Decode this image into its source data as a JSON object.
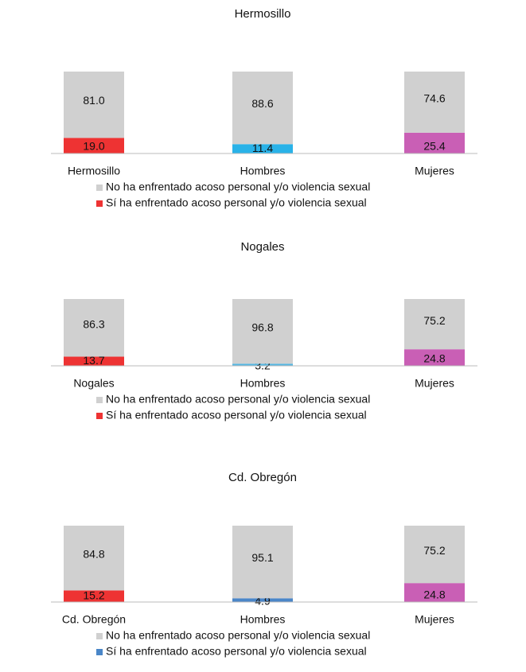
{
  "chart_data": [
    {
      "type": "bar",
      "stacked": true,
      "title": "Hermosillo",
      "categories": [
        "Hermosillo",
        "Hombres",
        "Mujeres"
      ],
      "ylim": [
        0,
        100
      ],
      "series": [
        {
          "name": "Sí ha enfrentado acoso personal y/o violencia sexual",
          "color": "#ee3333",
          "colors": [
            "#ee3333",
            "#29b2e8",
            "#c95fb5"
          ],
          "values": [
            19.0,
            11.4,
            25.4
          ],
          "value_labels": [
            "19.0",
            "11.4",
            "25.4"
          ]
        },
        {
          "name": "No ha enfrentado acoso personal y/o violencia sexual",
          "color": "#d0d0d0",
          "values": [
            81.0,
            88.6,
            74.6
          ],
          "value_labels": [
            "81.0",
            "88.6",
            "74.6"
          ]
        }
      ]
    },
    {
      "type": "bar",
      "stacked": true,
      "title": "Nogales",
      "categories": [
        "Nogales",
        "Hombres",
        "Mujeres"
      ],
      "ylim": [
        0,
        100
      ],
      "series": [
        {
          "name": "Sí ha enfrentado acoso personal y/o violencia sexual",
          "color": "#ee3333",
          "colors": [
            "#ee3333",
            "#56b6e0",
            "#c95fb5"
          ],
          "values": [
            13.7,
            3.2,
            24.8
          ],
          "value_labels": [
            "13.7",
            "3.2",
            "24.8"
          ]
        },
        {
          "name": "No ha enfrentado acoso personal y/o violencia sexual",
          "color": "#d0d0d0",
          "values": [
            86.3,
            96.8,
            75.2
          ],
          "value_labels": [
            "86.3",
            "96.8",
            "75.2"
          ]
        }
      ]
    },
    {
      "type": "bar",
      "stacked": true,
      "title": "Cd. Obregón",
      "categories": [
        "Cd. Obregón",
        "Hombres",
        "Mujeres"
      ],
      "ylim": [
        0,
        100
      ],
      "series": [
        {
          "name": "Sí ha enfrentado acoso personal y/o violencia sexual",
          "color": "#4a86c8",
          "colors": [
            "#ee3333",
            "#4a86c8",
            "#c95fb5"
          ],
          "values": [
            15.2,
            4.9,
            24.8
          ],
          "value_labels": [
            "15.2",
            "4.9",
            "24.8"
          ]
        },
        {
          "name": "No ha enfrentado acoso personal y/o violencia sexual",
          "color": "#d0d0d0",
          "values": [
            84.8,
            95.1,
            75.2
          ],
          "value_labels": [
            "84.8",
            "95.1",
            "75.2"
          ]
        }
      ]
    }
  ]
}
